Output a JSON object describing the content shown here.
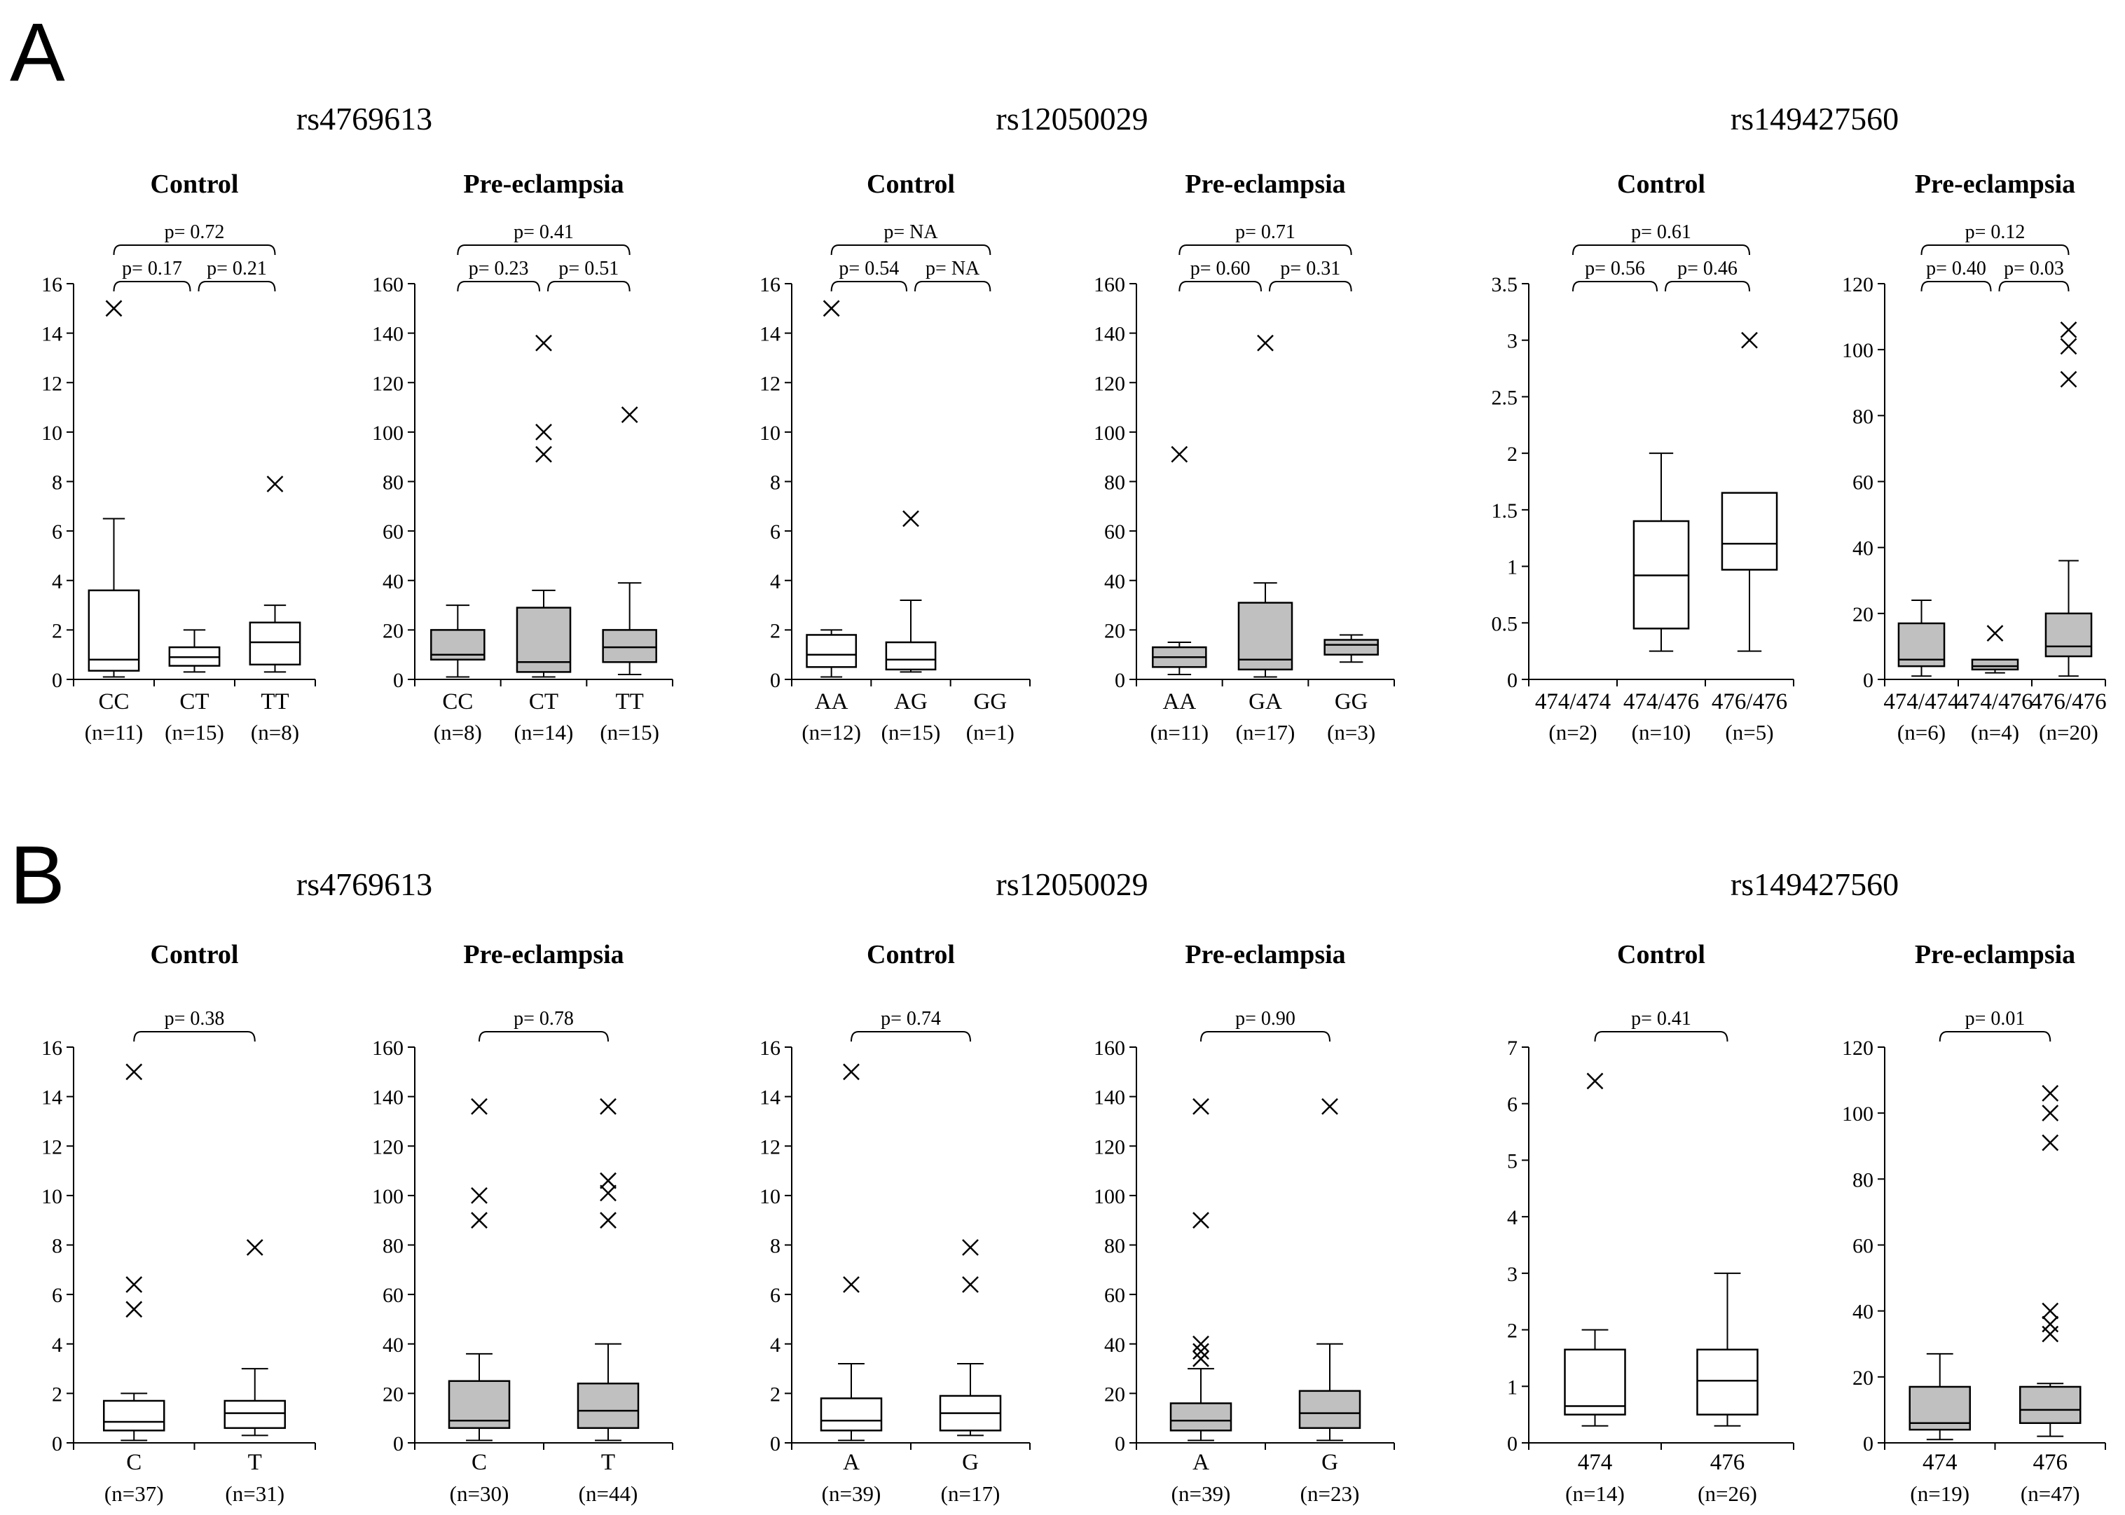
{
  "panel_labels": [
    "A",
    "B"
  ],
  "chart_data": [
    {
      "id": "A-rs4769613",
      "type": "box",
      "snp": "rs4769613",
      "subtitle": "Control",
      "ylim": [
        0,
        16
      ],
      "yticks": [
        0,
        2,
        4,
        6,
        8,
        10,
        12,
        14,
        16
      ],
      "box_fill": "#ffffff",
      "categories": [
        "CC",
        "CT",
        "TT"
      ],
      "counts": [
        "(n=11)",
        "(n=15)",
        "(n=8)"
      ],
      "boxes": [
        {
          "min": 0.1,
          "q1": 0.35,
          "median": 0.8,
          "q3": 3.6,
          "max": 6.5
        },
        {
          "min": 0.3,
          "q1": 0.55,
          "median": 0.9,
          "q3": 1.3,
          "max": 2.0
        },
        {
          "min": 0.3,
          "q1": 0.6,
          "median": 1.5,
          "q3": 2.3,
          "max": 3.0
        }
      ],
      "outliers": [
        [
          15.0
        ],
        [],
        [
          7.9
        ]
      ],
      "comparisons": [
        {
          "from": 0,
          "to": 2,
          "label": "p= 0.72"
        },
        {
          "from": 0,
          "to": 1,
          "label": "p= 0.17"
        },
        {
          "from": 1,
          "to": 2,
          "label": "p= 0.21"
        }
      ]
    },
    {
      "id": "A-rs4769613-pe",
      "type": "box",
      "subtitle": "Pre-eclampsia",
      "ylim": [
        0,
        160
      ],
      "yticks": [
        0,
        20,
        40,
        60,
        80,
        100,
        120,
        140,
        160
      ],
      "box_fill": "#c0c0c0",
      "categories": [
        "CC",
        "CT",
        "TT"
      ],
      "counts": [
        "(n=8)",
        "(n=14)",
        "(n=15)"
      ],
      "boxes": [
        {
          "min": 1,
          "q1": 8,
          "median": 10,
          "q3": 20,
          "max": 30
        },
        {
          "min": 1,
          "q1": 3,
          "median": 7,
          "q3": 29,
          "max": 36
        },
        {
          "min": 2,
          "q1": 7,
          "median": 13,
          "q3": 20,
          "max": 39
        }
      ],
      "outliers": [
        [],
        [
          136,
          100,
          91
        ],
        [
          107
        ]
      ],
      "comparisons": [
        {
          "from": 0,
          "to": 2,
          "label": "p= 0.41"
        },
        {
          "from": 0,
          "to": 1,
          "label": "p= 0.23"
        },
        {
          "from": 1,
          "to": 2,
          "label": "p= 0.51"
        }
      ]
    },
    {
      "id": "A-rs12050029",
      "type": "box",
      "snp": "rs12050029",
      "subtitle": "Control",
      "ylim": [
        0,
        16
      ],
      "yticks": [
        0,
        2,
        4,
        6,
        8,
        10,
        12,
        14,
        16
      ],
      "box_fill": "#ffffff",
      "categories": [
        "AA",
        "AG",
        "GG"
      ],
      "counts": [
        "(n=12)",
        "(n=15)",
        "(n=1)"
      ],
      "boxes": [
        {
          "min": 0.1,
          "q1": 0.5,
          "median": 1.0,
          "q3": 1.8,
          "max": 2.0
        },
        {
          "min": 0.3,
          "q1": 0.4,
          "median": 0.8,
          "q3": 1.5,
          "max": 3.2
        },
        null
      ],
      "outliers": [
        [
          15.0
        ],
        [
          6.5
        ],
        []
      ],
      "comparisons": [
        {
          "from": 0,
          "to": 2,
          "label": "p= NA"
        },
        {
          "from": 0,
          "to": 1,
          "label": "p= 0.54"
        },
        {
          "from": 1,
          "to": 2,
          "label": "p= NA"
        }
      ]
    },
    {
      "id": "A-rs12050029-pe",
      "type": "box",
      "subtitle": "Pre-eclampsia",
      "ylim": [
        0,
        160
      ],
      "yticks": [
        0,
        20,
        40,
        60,
        80,
        100,
        120,
        140,
        160
      ],
      "box_fill": "#c0c0c0",
      "categories": [
        "AA",
        "GA",
        "GG"
      ],
      "counts": [
        "(n=11)",
        "(n=17)",
        "(n=3)"
      ],
      "boxes": [
        {
          "min": 2,
          "q1": 5,
          "median": 9,
          "q3": 13,
          "max": 15
        },
        {
          "min": 1,
          "q1": 4,
          "median": 8,
          "q3": 31,
          "max": 39
        },
        {
          "min": 7,
          "q1": 10,
          "median": 14,
          "q3": 16,
          "max": 18
        }
      ],
      "outliers": [
        [
          91
        ],
        [
          136
        ],
        []
      ],
      "comparisons": [
        {
          "from": 0,
          "to": 2,
          "label": "p= 0.71"
        },
        {
          "from": 0,
          "to": 1,
          "label": "p= 0.60"
        },
        {
          "from": 1,
          "to": 2,
          "label": "p= 0.31"
        }
      ]
    },
    {
      "id": "A-rs149427560",
      "type": "box",
      "snp": "rs149427560",
      "subtitle": "Control",
      "ylim": [
        0,
        3.5
      ],
      "yticks": [
        0,
        0.5,
        1,
        1.5,
        2,
        2.5,
        3,
        3.5
      ],
      "ytick_labels": [
        "0",
        "0.5",
        "1",
        "1.5",
        "2",
        "2.5",
        "3",
        "3.5"
      ],
      "box_fill": "#ffffff",
      "categories": [
        "474/474",
        "474/476",
        "476/476"
      ],
      "counts": [
        "(n=2)",
        "(n=10)",
        "(n=5)"
      ],
      "boxes": [
        null,
        {
          "min": 0.25,
          "q1": 0.45,
          "median": 0.92,
          "q3": 1.4,
          "max": 2.0
        },
        {
          "min": 0.25,
          "q1": 0.97,
          "median": 1.2,
          "q3": 1.65,
          "max": 1.65
        }
      ],
      "outliers": [
        [],
        [],
        [
          3.0
        ]
      ],
      "comparisons": [
        {
          "from": 0,
          "to": 2,
          "label": "p= 0.61"
        },
        {
          "from": 0,
          "to": 1,
          "label": "p= 0.56"
        },
        {
          "from": 1,
          "to": 2,
          "label": "p= 0.46"
        }
      ]
    },
    {
      "id": "A-rs149427560-pe",
      "type": "box",
      "subtitle": "Pre-eclampsia",
      "ylim": [
        0,
        120
      ],
      "yticks": [
        0,
        20,
        40,
        60,
        80,
        100,
        120
      ],
      "box_fill": "#c0c0c0",
      "categories": [
        "474/474",
        "474/476",
        "476/476"
      ],
      "counts": [
        "(n=6)",
        "(n=4)",
        "(n=20)"
      ],
      "boxes": [
        {
          "min": 1,
          "q1": 4,
          "median": 6,
          "q3": 17,
          "max": 24
        },
        {
          "min": 2,
          "q1": 3,
          "median": 4,
          "q3": 6,
          "max": 6
        },
        {
          "min": 1,
          "q1": 7,
          "median": 10,
          "q3": 20,
          "max": 36
        }
      ],
      "outliers": [
        [],
        [
          14
        ],
        [
          106,
          101,
          91
        ]
      ],
      "comparisons": [
        {
          "from": 0,
          "to": 2,
          "label": "p= 0.12"
        },
        {
          "from": 0,
          "to": 1,
          "label": "p= 0.40"
        },
        {
          "from": 1,
          "to": 2,
          "label": "p= 0.03"
        }
      ]
    },
    {
      "id": "B-rs4769613",
      "type": "box",
      "snp": "rs4769613",
      "subtitle": "Control",
      "ylim": [
        0,
        16
      ],
      "yticks": [
        0,
        2,
        4,
        6,
        8,
        10,
        12,
        14,
        16
      ],
      "box_fill": "#ffffff",
      "categories": [
        "C",
        "T"
      ],
      "counts": [
        "(n=37)",
        "(n=31)"
      ],
      "boxes": [
        {
          "min": 0.1,
          "q1": 0.5,
          "median": 0.85,
          "q3": 1.7,
          "max": 2.0
        },
        {
          "min": 0.3,
          "q1": 0.6,
          "median": 1.2,
          "q3": 1.7,
          "max": 3.0
        }
      ],
      "outliers": [
        [
          15.0,
          6.4,
          5.4
        ],
        [
          7.9
        ]
      ],
      "comparisons": [
        {
          "from": 0,
          "to": 1,
          "label": "p= 0.38"
        }
      ]
    },
    {
      "id": "B-rs4769613-pe",
      "type": "box",
      "subtitle": "Pre-eclampsia",
      "ylim": [
        0,
        160
      ],
      "yticks": [
        0,
        20,
        40,
        60,
        80,
        100,
        120,
        140,
        160
      ],
      "box_fill": "#c0c0c0",
      "categories": [
        "C",
        "T"
      ],
      "counts": [
        "(n=30)",
        "(n=44)"
      ],
      "boxes": [
        {
          "min": 1,
          "q1": 6,
          "median": 9,
          "q3": 25,
          "max": 36
        },
        {
          "min": 1,
          "q1": 6,
          "median": 13,
          "q3": 24,
          "max": 40
        }
      ],
      "outliers": [
        [
          136,
          100,
          90
        ],
        [
          136,
          106,
          101,
          90
        ]
      ],
      "comparisons": [
        {
          "from": 0,
          "to": 1,
          "label": "p= 0.78"
        }
      ]
    },
    {
      "id": "B-rs12050029",
      "type": "box",
      "snp": "rs12050029",
      "subtitle": "Control",
      "ylim": [
        0,
        16
      ],
      "yticks": [
        0,
        2,
        4,
        6,
        8,
        10,
        12,
        14,
        16
      ],
      "box_fill": "#ffffff",
      "categories": [
        "A",
        "G"
      ],
      "counts": [
        "(n=39)",
        "(n=17)"
      ],
      "boxes": [
        {
          "min": 0.1,
          "q1": 0.5,
          "median": 0.9,
          "q3": 1.8,
          "max": 3.2
        },
        {
          "min": 0.3,
          "q1": 0.5,
          "median": 1.2,
          "q3": 1.9,
          "max": 3.2
        }
      ],
      "outliers": [
        [
          15.0,
          6.4
        ],
        [
          7.9,
          6.4
        ]
      ],
      "comparisons": [
        {
          "from": 0,
          "to": 1,
          "label": "p= 0.74"
        }
      ]
    },
    {
      "id": "B-rs12050029-pe",
      "type": "box",
      "subtitle": "Pre-eclampsia",
      "ylim": [
        0,
        160
      ],
      "yticks": [
        0,
        20,
        40,
        60,
        80,
        100,
        120,
        140,
        160
      ],
      "box_fill": "#c0c0c0",
      "categories": [
        "A",
        "G"
      ],
      "counts": [
        "(n=39)",
        "(n=23)"
      ],
      "boxes": [
        {
          "min": 1,
          "q1": 5,
          "median": 9,
          "q3": 16,
          "max": 30
        },
        {
          "min": 1,
          "q1": 6,
          "median": 12,
          "q3": 21,
          "max": 40
        }
      ],
      "outliers": [
        [
          136,
          90,
          40,
          37,
          34
        ],
        [
          136
        ]
      ],
      "comparisons": [
        {
          "from": 0,
          "to": 1,
          "label": "p= 0.90"
        }
      ]
    },
    {
      "id": "B-rs149427560",
      "type": "box",
      "snp": "rs149427560",
      "subtitle": "Control",
      "ylim": [
        0,
        7
      ],
      "yticks": [
        0,
        1,
        2,
        3,
        4,
        5,
        6,
        7
      ],
      "box_fill": "#ffffff",
      "categories": [
        "474",
        "476"
      ],
      "counts": [
        "(n=14)",
        "(n=26)"
      ],
      "boxes": [
        {
          "min": 0.3,
          "q1": 0.5,
          "median": 0.65,
          "q3": 1.65,
          "max": 2.0
        },
        {
          "min": 0.3,
          "q1": 0.5,
          "median": 1.1,
          "q3": 1.65,
          "max": 3.0
        }
      ],
      "outliers": [
        [
          6.4
        ],
        []
      ],
      "comparisons": [
        {
          "from": 0,
          "to": 1,
          "label": "p= 0.41"
        }
      ]
    },
    {
      "id": "B-rs149427560-pe",
      "type": "box",
      "subtitle": "Pre-eclampsia",
      "ylim": [
        0,
        120
      ],
      "yticks": [
        0,
        20,
        40,
        60,
        80,
        100,
        120
      ],
      "box_fill": "#c0c0c0",
      "categories": [
        "474",
        "476"
      ],
      "counts": [
        "(n=19)",
        "(n=47)"
      ],
      "boxes": [
        {
          "min": 1,
          "q1": 4,
          "median": 6,
          "q3": 17,
          "max": 27
        },
        {
          "min": 2,
          "q1": 6,
          "median": 10,
          "q3": 17,
          "max": 18
        }
      ],
      "outliers": [
        [],
        [
          106,
          100,
          91,
          40,
          36,
          33
        ]
      ],
      "comparisons": [
        {
          "from": 0,
          "to": 1,
          "label": "p= 0.01"
        }
      ]
    }
  ]
}
